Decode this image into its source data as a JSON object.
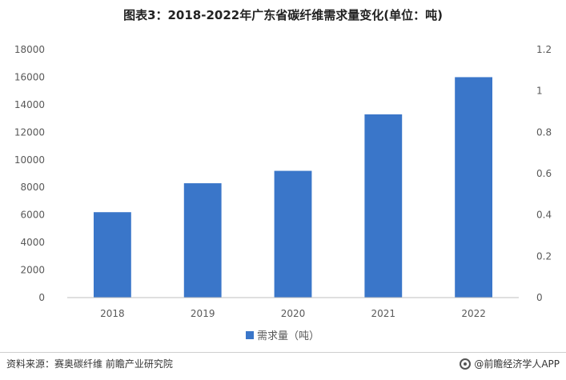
{
  "chart_data": {
    "type": "bar",
    "title": "图表3：2018-2022年广东省碳纤维需求量变化(单位：吨)",
    "categories": [
      "2018",
      "2019",
      "2020",
      "2021",
      "2022"
    ],
    "series": [
      {
        "name": "需求量（吨）",
        "values": [
          6200,
          8300,
          9200,
          13300,
          16000
        ]
      }
    ],
    "y_left": {
      "range": [
        0,
        18000
      ],
      "ticks": [
        "0",
        "2000",
        "4000",
        "6000",
        "8000",
        "10000",
        "12000",
        "14000",
        "16000",
        "18000"
      ]
    },
    "y_right": {
      "range": [
        0,
        1.2
      ],
      "ticks": [
        "0",
        "0.2",
        "0.4",
        "0.6",
        "0.8",
        "1",
        "1.2"
      ]
    },
    "grid": false,
    "legend_position": "bottom",
    "bar_color": "#3a76c9"
  },
  "footer": {
    "source": "资料来源：赛奥碳纤维 前瞻产业研究院",
    "brand": "@前瞻经济学人APP"
  }
}
